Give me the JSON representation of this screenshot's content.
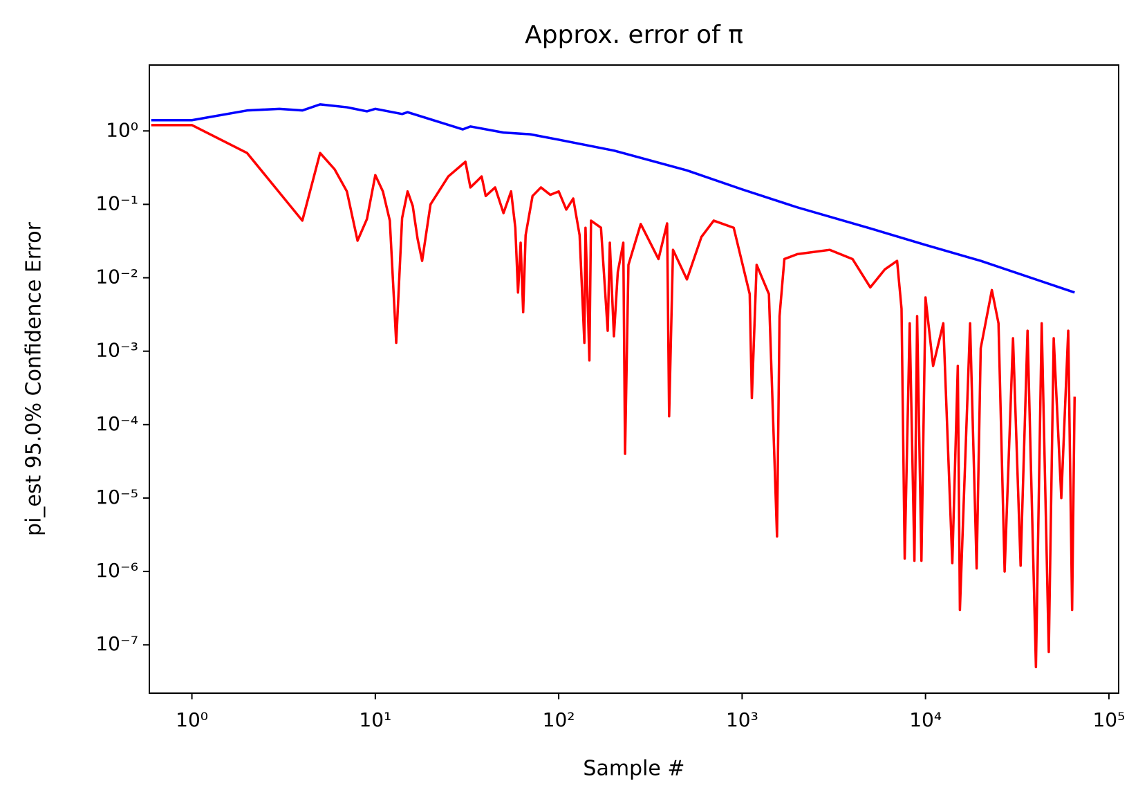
{
  "chart_data": {
    "type": "line",
    "title": "Approx. error of π",
    "xlabel": "Sample #",
    "ylabel": "pi_est 95.0% Confidence Error",
    "xscale": "log",
    "yscale": "log",
    "xlim": [
      0.586,
      113000
    ],
    "ylim": [
      2.2e-08,
      7.9
    ],
    "xticks": [
      {
        "value": 1,
        "label": "10⁰"
      },
      {
        "value": 10,
        "label": "10¹"
      },
      {
        "value": 100,
        "label": "10²"
      },
      {
        "value": 1000,
        "label": "10³"
      },
      {
        "value": 10000,
        "label": "10⁴"
      },
      {
        "value": 100000,
        "label": "10⁵"
      }
    ],
    "yticks": [
      {
        "value": 1e-07,
        "label": "10⁻⁷"
      },
      {
        "value": 1e-06,
        "label": "10⁻⁶"
      },
      {
        "value": 1e-05,
        "label": "10⁻⁵"
      },
      {
        "value": 0.0001,
        "label": "10⁻⁴"
      },
      {
        "value": 0.001,
        "label": "10⁻³"
      },
      {
        "value": 0.01,
        "label": "10⁻²"
      },
      {
        "value": 0.1,
        "label": "10⁻¹"
      },
      {
        "value": 1,
        "label": "10⁰"
      }
    ],
    "series": [
      {
        "color": "blue",
        "x": [
          0.6,
          1,
          2,
          3,
          4,
          5,
          7,
          9,
          10,
          14,
          15,
          30,
          33,
          50,
          70,
          100,
          200,
          500,
          1000,
          2000,
          5000,
          10000,
          20000,
          65000
        ],
        "values": [
          1.4,
          1.4,
          1.9,
          2.0,
          1.9,
          2.3,
          2.1,
          1.85,
          2.0,
          1.7,
          1.8,
          1.05,
          1.15,
          0.95,
          0.9,
          0.76,
          0.54,
          0.29,
          0.16,
          0.091,
          0.047,
          0.028,
          0.017,
          0.0063
        ]
      },
      {
        "color": "red",
        "x": [
          0.6,
          1,
          2,
          4,
          5,
          6,
          7,
          8,
          9,
          10,
          11,
          12,
          13,
          14,
          15,
          16,
          17,
          18,
          20,
          25,
          31,
          33,
          36,
          38,
          40,
          45,
          50,
          55,
          58,
          60,
          62,
          64,
          66,
          72,
          80,
          90,
          100,
          110,
          120,
          130,
          138,
          140,
          147,
          150,
          170,
          185,
          190,
          200,
          210,
          225,
          230,
          240,
          280,
          350,
          390,
          400,
          420,
          500,
          600,
          700,
          900,
          1100,
          1130,
          1200,
          1400,
          1550,
          1600,
          1700,
          2000,
          3000,
          4000,
          5000,
          6000,
          7000,
          7400,
          7700,
          8200,
          8700,
          9000,
          9500,
          10000,
          11000,
          12500,
          14000,
          15000,
          15400,
          17500,
          19000,
          20000,
          23000,
          25000,
          27000,
          30000,
          33000,
          36000,
          40000,
          43000,
          47000,
          50000,
          55000,
          60000,
          63000,
          65000
        ],
        "values": [
          1.2,
          1.2,
          0.5,
          0.06,
          0.5,
          0.3,
          0.15,
          0.032,
          0.063,
          0.25,
          0.15,
          0.06,
          0.0013,
          0.065,
          0.15,
          0.095,
          0.034,
          0.017,
          0.1,
          0.24,
          0.38,
          0.17,
          0.21,
          0.24,
          0.13,
          0.17,
          0.076,
          0.15,
          0.048,
          0.0063,
          0.03,
          0.0034,
          0.038,
          0.13,
          0.17,
          0.135,
          0.15,
          0.085,
          0.12,
          0.038,
          0.0013,
          0.048,
          0.00075,
          0.06,
          0.048,
          0.0019,
          0.03,
          0.0016,
          0.012,
          0.03,
          4e-05,
          0.015,
          0.054,
          0.018,
          0.055,
          0.00013,
          0.024,
          0.0095,
          0.036,
          0.06,
          0.048,
          0.006,
          0.00023,
          0.015,
          0.006,
          3e-06,
          0.003,
          0.018,
          0.021,
          0.024,
          0.018,
          0.0074,
          0.013,
          0.017,
          0.0038,
          1.5e-06,
          0.0024,
          1.4e-06,
          0.003,
          1.4e-06,
          0.0054,
          0.00063,
          0.0024,
          1.3e-06,
          0.00063,
          3e-07,
          0.0024,
          1.1e-06,
          0.0011,
          0.0068,
          0.0024,
          1e-06,
          0.0015,
          1.2e-06,
          0.0019,
          5e-08,
          0.0024,
          8e-08,
          0.0015,
          1e-05,
          0.0019,
          3e-07,
          0.00024
        ]
      }
    ]
  }
}
